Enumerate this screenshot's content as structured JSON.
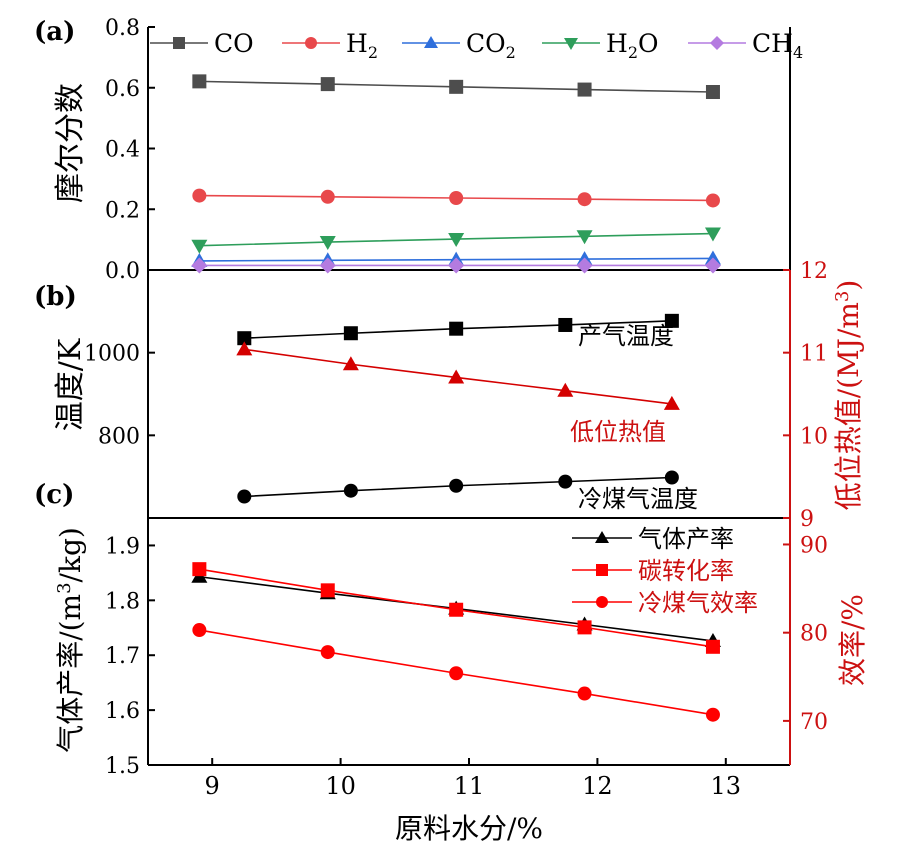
{
  "figure": {
    "x_axis_label": "原料水分/%",
    "x_ticks": [
      "9",
      "10",
      "11",
      "12",
      "13"
    ]
  },
  "chart_data": [
    {
      "panel_label": "(a)",
      "type": "line",
      "ylabel": "摩尔分数",
      "ylim": [
        0,
        0.8
      ],
      "xlim": [
        8.5,
        13.5
      ],
      "y_ticks": [
        "0.0",
        "0.2",
        "0.4",
        "0.6",
        "0.8"
      ],
      "x": [
        8.9,
        9.9,
        10.9,
        11.9,
        12.9
      ],
      "legend_position": "top",
      "series": [
        {
          "name_main": "CO",
          "name_sub": "",
          "name_tail": "",
          "color": "#4d4d4d",
          "marker": "square",
          "values": [
            0.621,
            0.612,
            0.603,
            0.594,
            0.586
          ]
        },
        {
          "name_main": "H",
          "name_sub": "2",
          "name_tail": "",
          "color": "#e8484b",
          "marker": "circle",
          "values": [
            0.245,
            0.241,
            0.237,
            0.233,
            0.229
          ]
        },
        {
          "name_main": "CO",
          "name_sub": "2",
          "name_tail": "",
          "color": "#2f6fdc",
          "marker": "triangle-up",
          "values": [
            0.03,
            0.032,
            0.034,
            0.036,
            0.038
          ]
        },
        {
          "name_main": "H",
          "name_sub": "2",
          "name_tail": "O",
          "color": "#2e9e5b",
          "marker": "triangle-down",
          "values": [
            0.08,
            0.092,
            0.102,
            0.111,
            0.12
          ]
        },
        {
          "name_main": "CH",
          "name_sub": "4",
          "name_tail": "",
          "color": "#b47be0",
          "marker": "diamond",
          "values": [
            0.015,
            0.015,
            0.015,
            0.015,
            0.015
          ]
        }
      ]
    },
    {
      "panel_label": "(b)",
      "type": "line",
      "ylabel": "温度/K",
      "ylabel_right": "低位热值/(MJ/m³)",
      "ylabel_right_main": "低位热值/(MJ/m",
      "ylabel_right_sup": "3",
      "ylabel_right_tail": ")",
      "ylim": [
        600,
        1200
      ],
      "ylim_right": [
        9,
        12
      ],
      "xlim": [
        8.5,
        13.5
      ],
      "y_ticks": [
        "800",
        "1000"
      ],
      "y_ticks_right": [
        "9",
        "10",
        "11",
        "12"
      ],
      "x": [
        9.25,
        10.08,
        10.9,
        11.75,
        12.58
      ],
      "series": [
        {
          "name": "产气温度",
          "axis": "left",
          "color": "#000000",
          "marker": "square",
          "values": [
            1035,
            1047,
            1058,
            1067,
            1077
          ]
        },
        {
          "name": "低位热值",
          "axis": "right",
          "color": "#d40000",
          "marker": "triangle-up",
          "values": [
            11.04,
            10.86,
            10.7,
            10.54,
            10.38
          ]
        },
        {
          "name": "冷煤气温度",
          "axis": "left",
          "color": "#000000",
          "marker": "circle",
          "values": [
            652,
            666,
            678,
            688,
            698
          ]
        }
      ]
    },
    {
      "panel_label": "(c)",
      "type": "line",
      "ylabel": "气体产率/(m³/kg)",
      "ylabel_main": "气体产率/(m",
      "ylabel_sup": "3",
      "ylabel_tail": "/kg)",
      "ylabel_right": "效率/%",
      "ylim": [
        1.5,
        1.95
      ],
      "ylim_right": [
        65,
        93
      ],
      "xlim": [
        8.5,
        13.5
      ],
      "y_ticks": [
        "1.5",
        "1.6",
        "1.7",
        "1.8",
        "1.9"
      ],
      "y_ticks_right": [
        "70",
        "80",
        "90"
      ],
      "x": [
        8.9,
        9.9,
        10.9,
        11.9,
        12.9
      ],
      "legend_position": "top-right",
      "series": [
        {
          "name": "气体产率",
          "axis": "left",
          "color": "#000000",
          "marker": "triangle-up",
          "values": [
            1.843,
            1.813,
            1.785,
            1.756,
            1.726
          ]
        },
        {
          "name": "碳转化率",
          "axis": "right",
          "color": "#ff0000",
          "marker": "square",
          "values": [
            87.2,
            84.8,
            82.6,
            80.6,
            78.4
          ]
        },
        {
          "name": "冷煤气效率",
          "axis": "right",
          "color": "#ff0000",
          "marker": "circle",
          "values": [
            80.3,
            77.8,
            75.4,
            73.1,
            70.7
          ]
        }
      ]
    }
  ]
}
